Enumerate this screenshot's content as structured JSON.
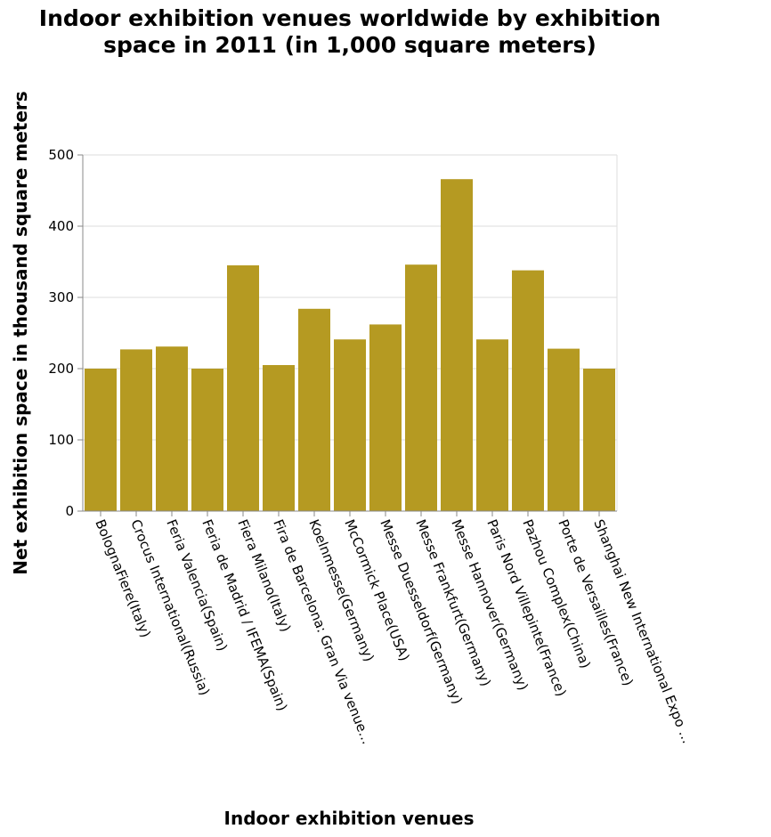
{
  "chart_data": {
    "type": "bar",
    "title": "Indoor exhibition venues worldwide by exhibition space in 2011 (in 1,000 square meters)",
    "title_lines": [
      "Indoor exhibition venues worldwide by exhibition",
      "space in 2011 (in 1,000 square meters)"
    ],
    "xlabel": "Indoor exhibition venues",
    "ylabel": "Net exhibition space in thousand square meters",
    "ylim": [
      0,
      500
    ],
    "yticks": [
      0,
      100,
      200,
      300,
      400,
      500
    ],
    "grid": true,
    "bar_color": "#b59a22",
    "categories": [
      "BolognaFiere(Italy)",
      "Crocus International(Russia)",
      "Feria Valencia(Spain)",
      "Feria de Madrid / IFEMA(Spain)",
      "Fiera Milano(Italy)",
      "Fira de Barcelona: Gran Via venue…",
      "Koelnmesse(Germany)",
      "McCormick Place(USA)",
      "Messe Duesseldorf(Germany)",
      "Messe Frankfurt(Germany)",
      "Messe Hannover(Germany)",
      "Paris Nord Villepinte(France)",
      "Pazhou Complex(China)",
      "Porte de Versailles(France)",
      "Shanghai New International Expo …"
    ],
    "values": [
      200,
      227,
      231,
      200,
      345,
      205,
      284,
      241,
      262,
      346,
      466,
      241,
      338,
      228,
      200
    ]
  }
}
